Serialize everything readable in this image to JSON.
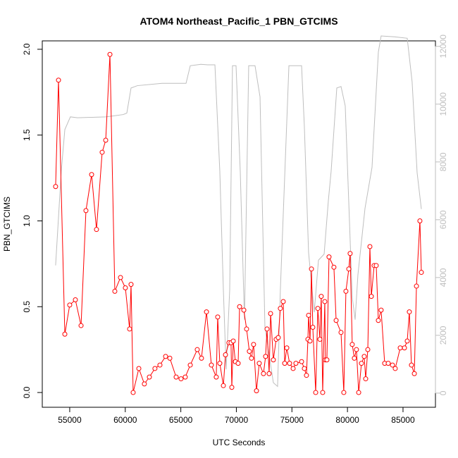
{
  "chart_data": {
    "type": "line",
    "title": "ATOM4 Northeast_Pacific_1 PBN_GTCIMS",
    "x_label": "UTC Seconds",
    "y_label": "PBN_GTCIMS",
    "xlim": [
      52530,
      87920
    ],
    "ylim": [
      -0.086,
      2.049
    ],
    "y2lim": [
      -490,
      12190
    ],
    "xticks": [
      55000,
      60000,
      65000,
      70000,
      75000,
      80000,
      85000
    ],
    "yticks": [
      {
        "value": 0,
        "label": "0.0"
      },
      {
        "value": 0.5,
        "label": "0.5"
      },
      {
        "value": 1,
        "label": "1.0"
      },
      {
        "value": 1.5,
        "label": "1.5"
      },
      {
        "value": 2,
        "label": "2.0"
      }
    ],
    "y2ticks": [
      0,
      2000,
      4000,
      6000,
      8000,
      10000,
      12000
    ],
    "y2_color": "#bebebe",
    "series": [
      {
        "color": "#ff0000",
        "marker": "circle",
        "x": [
          53730,
          53990,
          54560,
          55000,
          55510,
          56020,
          56460,
          56970,
          57410,
          57920,
          58240,
          58620,
          59060,
          59570,
          60010,
          60390,
          60520,
          60710,
          61220,
          61720,
          62170,
          62670,
          63120,
          63630,
          64010,
          64580,
          65020,
          65400,
          65850,
          66480,
          66860,
          67310,
          67750,
          68190,
          68320,
          68510,
          68830,
          69020,
          69330,
          69520,
          69590,
          69720,
          69910,
          70160,
          70290,
          70670,
          70920,
          71170,
          71360,
          71550,
          71810,
          72060,
          72440,
          72630,
          72760,
          72950,
          73080,
          73330,
          73580,
          73770,
          73960,
          74220,
          74350,
          74540,
          74790,
          75110,
          75360,
          75870,
          76120,
          76310,
          76440,
          76500,
          76630,
          76760,
          76880,
          77140,
          77330,
          77520,
          77640,
          77770,
          77960,
          78020,
          78150,
          78340,
          78780,
          78980,
          79420,
          79670,
          79860,
          80120,
          80240,
          80430,
          80620,
          80810,
          81010,
          81260,
          81510,
          81640,
          81830,
          82020,
          82150,
          82400,
          82590,
          82780,
          83030,
          83350,
          83670,
          84050,
          84300,
          84750,
          85130,
          85380,
          85570,
          85760,
          86020,
          86210,
          86520,
          86650
        ],
        "values": [
          1.2,
          1.82,
          0.34,
          0.51,
          0.54,
          0.39,
          1.06,
          1.27,
          0.95,
          1.4,
          1.47,
          1.97,
          0.59,
          0.67,
          0.61,
          0.37,
          0.63,
          0.0,
          0.14,
          0.05,
          0.09,
          0.14,
          0.16,
          0.21,
          0.2,
          0.09,
          0.08,
          0.09,
          0.16,
          0.25,
          0.2,
          0.47,
          0.16,
          0.09,
          0.44,
          0.17,
          0.04,
          0.22,
          0.29,
          0.29,
          0.03,
          0.3,
          0.18,
          0.17,
          0.5,
          0.48,
          0.37,
          0.24,
          0.2,
          0.28,
          0.01,
          0.17,
          0.11,
          0.21,
          0.37,
          0.11,
          0.46,
          0.19,
          0.31,
          0.32,
          0.49,
          0.53,
          0.17,
          0.26,
          0.17,
          0.14,
          0.17,
          0.18,
          0.14,
          0.1,
          0.31,
          0.45,
          0.3,
          0.72,
          0.38,
          0.0,
          0.49,
          0.31,
          0.56,
          0.0,
          0.53,
          0.19,
          0.19,
          0.79,
          0.73,
          0.42,
          0.35,
          0.0,
          0.59,
          0.72,
          0.81,
          0.28,
          0.2,
          0.25,
          0.0,
          0.17,
          0.21,
          0.08,
          0.25,
          0.85,
          0.56,
          0.74,
          0.74,
          0.42,
          0.48,
          0.17,
          0.17,
          0.16,
          0.14,
          0.26,
          0.26,
          0.3,
          0.47,
          0.16,
          0.11,
          0.62,
          1.0,
          0.7
        ]
      },
      {
        "color": "#bebebe",
        "axis": "y2",
        "x": [
          53730,
          54240,
          54560,
          55060,
          55700,
          58240,
          58870,
          59820,
          60140,
          60520,
          61090,
          63310,
          65470,
          65850,
          66800,
          67430,
          68070,
          68510,
          68830,
          69080,
          69400,
          69650,
          69970,
          70350,
          70730,
          71110,
          71680,
          72130,
          72570,
          73330,
          73710,
          73960,
          74730,
          75230,
          75870,
          76120,
          76500,
          77010,
          77390,
          77900,
          78280,
          78530,
          79040,
          79420,
          79800,
          80430,
          80690,
          80940,
          81580,
          82210,
          82780,
          83030,
          84240,
          85380,
          85820,
          86270,
          86650
        ],
        "values": [
          4420,
          7680,
          9120,
          9560,
          9530,
          9560,
          9590,
          9640,
          9690,
          10560,
          10640,
          10720,
          10720,
          11330,
          11380,
          11360,
          11360,
          7680,
          3570,
          820,
          3570,
          11330,
          11330,
          7680,
          2540,
          11330,
          11330,
          10250,
          2290,
          360,
          230,
          3570,
          11330,
          11330,
          11330,
          9230,
          4860,
          2800,
          4600,
          4810,
          6660,
          7680,
          10560,
          10610,
          9940,
          3320,
          2540,
          4090,
          6400,
          7810,
          11800,
          12360,
          12330,
          12280,
          10770,
          7630,
          6370
        ]
      }
    ]
  }
}
